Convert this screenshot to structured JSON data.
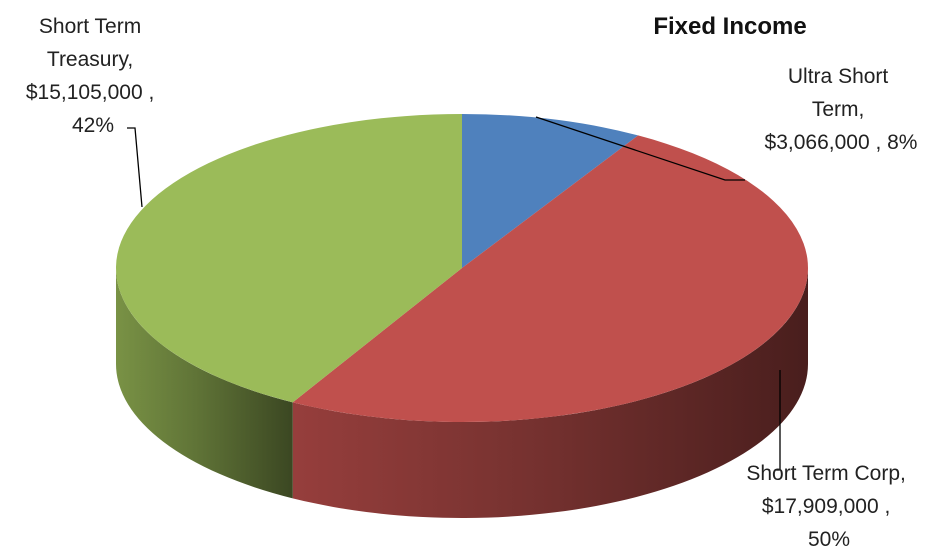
{
  "chart_data": {
    "type": "pie",
    "title": "Fixed Income",
    "slices": [
      {
        "name": "Ultra Short Term",
        "value": 3066000,
        "percent": 8,
        "color": "#4F81BD",
        "label_lines": [
          "Ultra Short",
          "Term,",
          "$3,066,000 , 8%"
        ]
      },
      {
        "name": "Short Term Corp",
        "value": 17909000,
        "percent": 50,
        "color": "#C0504D",
        "label_lines": [
          "Short Term Corp,",
          "$17,909,000 ,",
          "50%"
        ]
      },
      {
        "name": "Short Term Treasury",
        "value": 15105000,
        "percent": 42,
        "color": "#9BBB59",
        "label_lines": [
          "Short Term",
          "Treasury,",
          "$15,105,000 ,",
          "42%"
        ]
      }
    ],
    "style": "3d",
    "legend": "none"
  }
}
